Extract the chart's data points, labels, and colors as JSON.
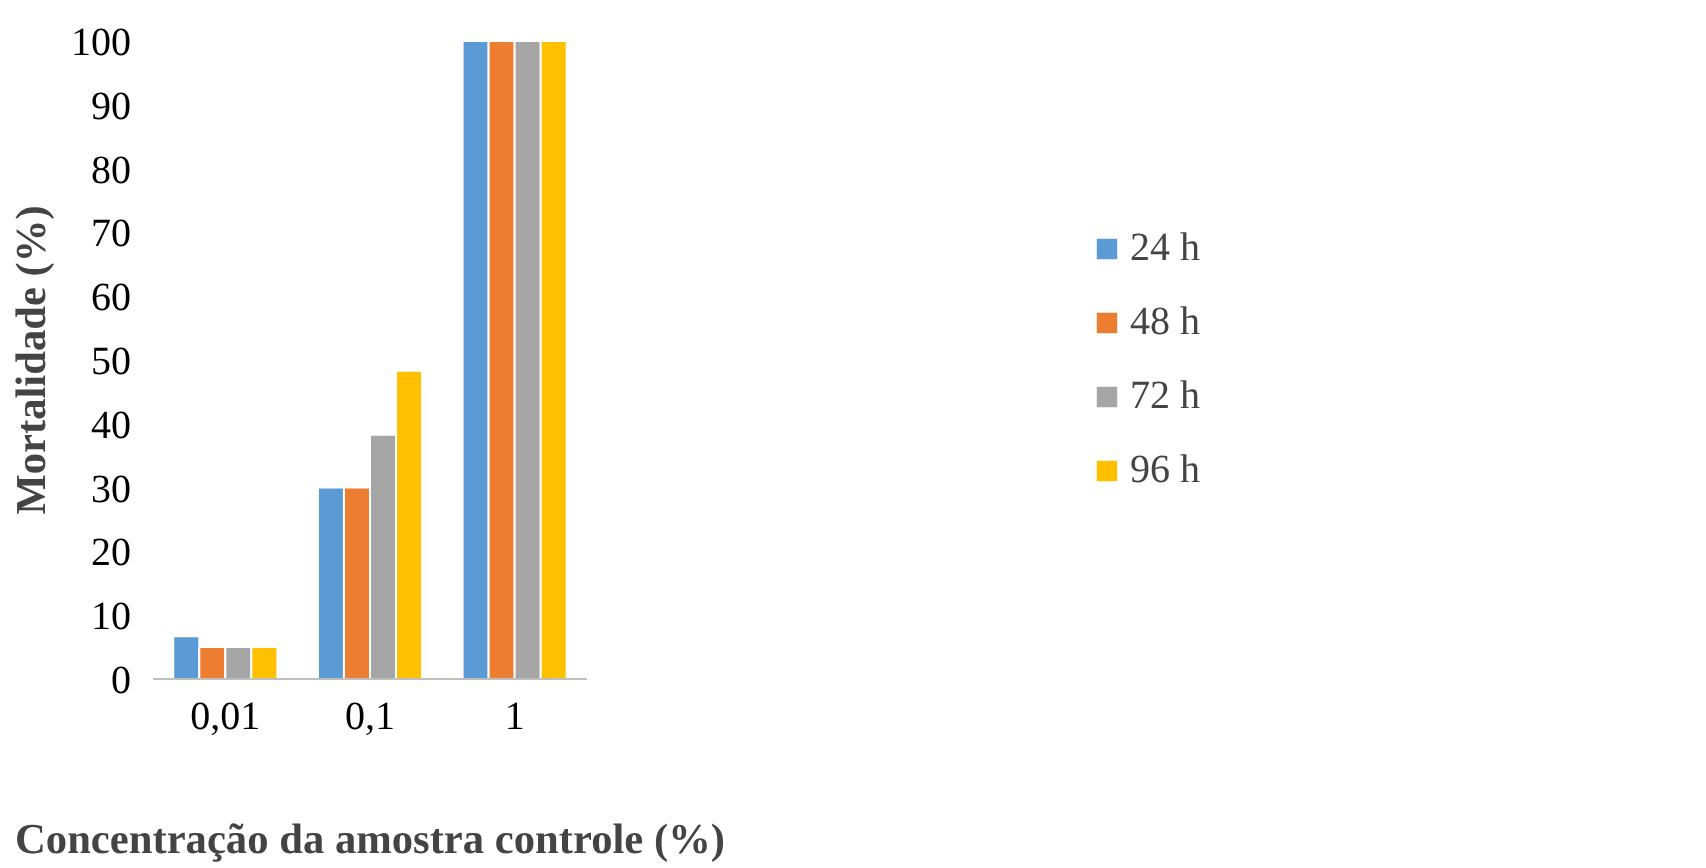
{
  "chart_data": {
    "type": "bar",
    "xlabel": "Concentração da amostra controle (%)",
    "ylabel": "Mortalidade (%)",
    "categories": [
      "0,01",
      "0,1",
      "1"
    ],
    "series": [
      {
        "name": "24 h",
        "color": "#5b9bd5",
        "values": [
          6.7,
          30,
          100
        ]
      },
      {
        "name": "48 h",
        "color": "#ed7d31",
        "values": [
          5,
          30,
          100
        ]
      },
      {
        "name": "72 h",
        "color": "#a5a5a5",
        "values": [
          5,
          38.3,
          100
        ]
      },
      {
        "name": "96 h",
        "color": "#ffc000",
        "values": [
          5,
          48.3,
          100
        ]
      }
    ],
    "ylim": [
      0,
      100
    ],
    "yticks": [
      0,
      10,
      20,
      30,
      40,
      50,
      60,
      70,
      80,
      90,
      100
    ],
    "grid": false,
    "legend": "right"
  }
}
